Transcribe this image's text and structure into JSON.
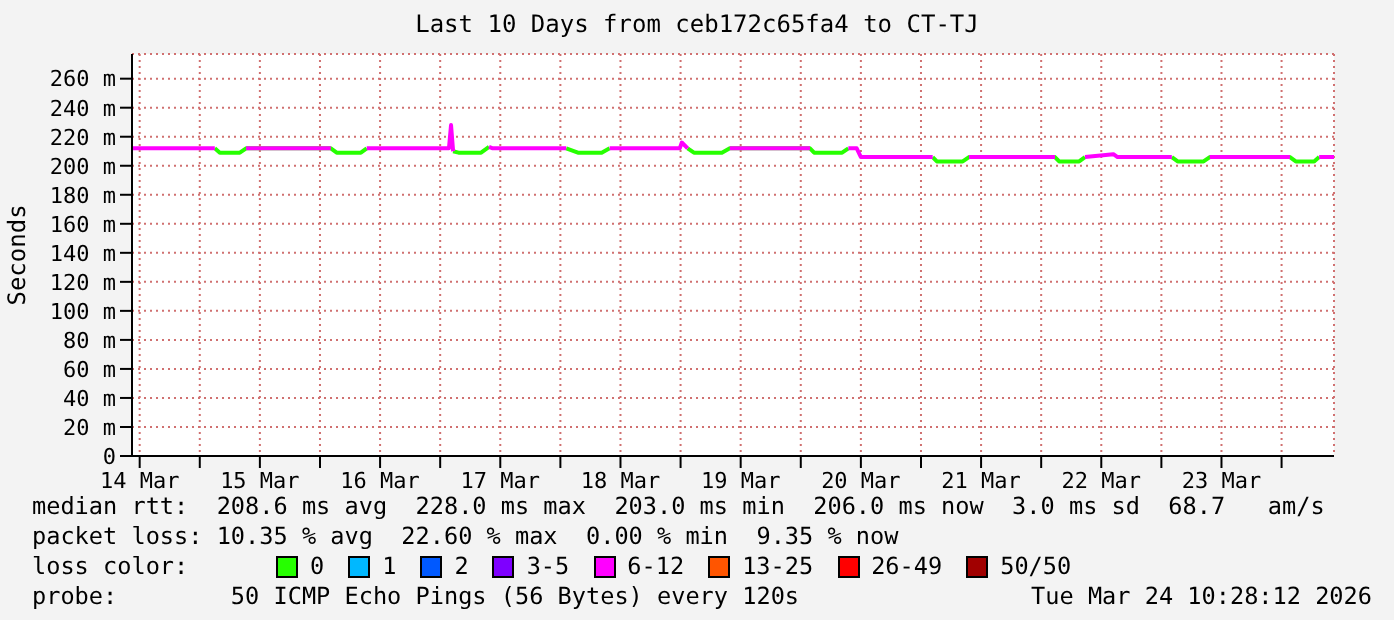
{
  "chart_data": {
    "type": "line",
    "title": "Last 10 Days from ceb172c65fa4 to CT-TJ",
    "ylabel": "Seconds",
    "legend_title": "loss color:",
    "legend": "bottom",
    "grid": true,
    "marker": "none",
    "line_style": "solid",
    "x": [
      "2026-03-14T10:28",
      "2026-03-15T03:00",
      "2026-03-15T04:00",
      "2026-03-15T08:00",
      "2026-03-15T09:15",
      "2026-03-16T02:10",
      "2026-03-16T03:20",
      "2026-03-16T08:10",
      "2026-03-16T09:20",
      "2026-03-17T01:45",
      "2026-03-17T02:10",
      "2026-03-17T02:35",
      "2026-03-17T03:40",
      "2026-03-17T08:10",
      "2026-03-17T09:45",
      "2026-03-17T10:30",
      "2026-03-18T01:10",
      "2026-03-18T03:30",
      "2026-03-18T08:15",
      "2026-03-18T09:50",
      "2026-03-18T23:50",
      "2026-03-19T00:15",
      "2026-03-19T01:25",
      "2026-03-19T02:40",
      "2026-03-19T08:15",
      "2026-03-19T09:50",
      "2026-03-20T01:50",
      "2026-03-20T02:40",
      "2026-03-20T08:15",
      "2026-03-20T09:30",
      "2026-03-20T11:10",
      "2026-03-20T12:00",
      "2026-03-21T02:20",
      "2026-03-21T03:10",
      "2026-03-21T08:20",
      "2026-03-21T09:35",
      "2026-03-22T02:45",
      "2026-03-22T03:35",
      "2026-03-22T07:35",
      "2026-03-22T08:45",
      "2026-03-22T14:25",
      "2026-03-22T15:15",
      "2026-03-23T02:05",
      "2026-03-23T03:15",
      "2026-03-23T08:25",
      "2026-03-23T09:40",
      "2026-03-24T01:40",
      "2026-03-24T02:50",
      "2026-03-24T06:30",
      "2026-03-24T07:30",
      "2026-03-24T10:28"
    ],
    "series": [
      {
        "name": "0",
        "color": "#26ff00",
        "values": [
          null,
          212,
          209,
          209,
          212,
          212,
          209,
          209,
          212,
          null,
          null,
          210,
          209,
          209,
          213,
          null,
          212,
          209,
          209,
          212,
          null,
          null,
          212,
          209,
          209,
          212,
          212,
          209,
          209,
          212,
          null,
          null,
          206,
          203,
          203,
          206,
          206,
          203,
          203,
          206,
          null,
          null,
          206,
          203,
          203,
          206,
          206,
          203,
          203,
          206,
          null
        ]
      },
      {
        "name": "1",
        "color": "#00b8ff",
        "values": [
          null,
          null,
          null,
          null,
          null,
          null,
          null,
          null,
          null,
          null,
          null,
          null,
          null,
          null,
          null,
          null,
          null,
          null,
          null,
          null,
          null,
          null,
          null,
          null,
          null,
          null,
          null,
          null,
          null,
          null,
          null,
          null,
          null,
          null,
          null,
          null,
          null,
          null,
          null,
          null,
          null,
          null,
          null,
          null,
          null,
          null,
          null,
          null,
          null,
          null,
          null
        ]
      },
      {
        "name": "2",
        "color": "#0059ff",
        "values": [
          null,
          null,
          null,
          null,
          null,
          null,
          null,
          null,
          null,
          null,
          null,
          null,
          null,
          null,
          null,
          null,
          null,
          null,
          null,
          null,
          null,
          null,
          null,
          null,
          null,
          null,
          null,
          null,
          null,
          null,
          null,
          null,
          null,
          null,
          null,
          null,
          null,
          null,
          null,
          null,
          null,
          null,
          null,
          null,
          null,
          null,
          null,
          null,
          null,
          null,
          null
        ]
      },
      {
        "name": "3-5",
        "color": "#7e00ff",
        "values": [
          null,
          null,
          null,
          null,
          null,
          null,
          null,
          null,
          null,
          null,
          null,
          null,
          null,
          null,
          null,
          null,
          null,
          null,
          null,
          null,
          null,
          null,
          null,
          null,
          null,
          null,
          null,
          null,
          null,
          null,
          null,
          null,
          null,
          null,
          null,
          null,
          null,
          null,
          null,
          null,
          null,
          null,
          null,
          null,
          null,
          null,
          null,
          null,
          null,
          null,
          null
        ]
      },
      {
        "name": "6-12",
        "color": "#ff00ff",
        "values": [
          212,
          212,
          null,
          null,
          212,
          212,
          null,
          null,
          212,
          212,
          228,
          210,
          null,
          null,
          213,
          212,
          212,
          null,
          null,
          212,
          212,
          216,
          212,
          null,
          null,
          212,
          212,
          null,
          null,
          212,
          212,
          206,
          206,
          null,
          null,
          206,
          206,
          null,
          null,
          206,
          208,
          206,
          206,
          null,
          null,
          206,
          206,
          null,
          null,
          206,
          206
        ]
      },
      {
        "name": "13-25",
        "color": "#ff5500",
        "values": [
          null,
          null,
          null,
          null,
          null,
          null,
          null,
          null,
          null,
          null,
          null,
          null,
          null,
          null,
          null,
          null,
          null,
          null,
          null,
          null,
          null,
          null,
          null,
          null,
          null,
          null,
          null,
          null,
          null,
          null,
          null,
          null,
          null,
          null,
          null,
          null,
          null,
          null,
          null,
          null,
          null,
          null,
          null,
          null,
          null,
          null,
          null,
          null,
          null,
          null,
          null
        ]
      },
      {
        "name": "26-49",
        "color": "#ff0000",
        "values": [
          null,
          null,
          null,
          null,
          null,
          null,
          null,
          null,
          null,
          null,
          null,
          null,
          null,
          null,
          null,
          null,
          null,
          null,
          null,
          null,
          null,
          null,
          null,
          null,
          null,
          null,
          null,
          null,
          null,
          null,
          null,
          null,
          null,
          null,
          null,
          null,
          null,
          null,
          null,
          null,
          null,
          null,
          null,
          null,
          null,
          null,
          null,
          null,
          null,
          null,
          null
        ]
      },
      {
        "name": "50/50",
        "color": "#a10000",
        "values": [
          null,
          null,
          null,
          null,
          null,
          null,
          null,
          null,
          null,
          null,
          null,
          null,
          null,
          null,
          null,
          null,
          null,
          null,
          null,
          null,
          null,
          null,
          null,
          null,
          null,
          null,
          null,
          null,
          null,
          null,
          null,
          null,
          null,
          null,
          null,
          null,
          null,
          null,
          null,
          null,
          null,
          null,
          null,
          null,
          null,
          null,
          null,
          null,
          null,
          null,
          null
        ]
      }
    ],
    "xlim": [
      "2026-03-14T10:28",
      "2026-03-24T10:28"
    ],
    "xticks": [
      {
        "value": "2026-03-14T12:00",
        "label": "14 Mar"
      },
      {
        "value": "2026-03-15T00:00",
        "label": null
      },
      {
        "value": "2026-03-15T12:00",
        "label": "15 Mar"
      },
      {
        "value": "2026-03-16T00:00",
        "label": null
      },
      {
        "value": "2026-03-16T12:00",
        "label": "16 Mar"
      },
      {
        "value": "2026-03-17T00:00",
        "label": null
      },
      {
        "value": "2026-03-17T12:00",
        "label": "17 Mar"
      },
      {
        "value": "2026-03-18T00:00",
        "label": null
      },
      {
        "value": "2026-03-18T12:00",
        "label": "18 Mar"
      },
      {
        "value": "2026-03-19T00:00",
        "label": null
      },
      {
        "value": "2026-03-19T12:00",
        "label": "19 Mar"
      },
      {
        "value": "2026-03-20T00:00",
        "label": null
      },
      {
        "value": "2026-03-20T12:00",
        "label": "20 Mar"
      },
      {
        "value": "2026-03-21T00:00",
        "label": null
      },
      {
        "value": "2026-03-21T12:00",
        "label": "21 Mar"
      },
      {
        "value": "2026-03-22T00:00",
        "label": null
      },
      {
        "value": "2026-03-22T12:00",
        "label": "22 Mar"
      },
      {
        "value": "2026-03-23T00:00",
        "label": null
      },
      {
        "value": "2026-03-23T12:00",
        "label": "23 Mar"
      },
      {
        "value": "2026-03-24T00:00",
        "label": null
      }
    ],
    "ylim": [
      0,
      277
    ],
    "yticks": [
      {
        "value": 0,
        "label": "0"
      },
      {
        "value": 20,
        "label": "20 m"
      },
      {
        "value": 40,
        "label": "40 m"
      },
      {
        "value": 60,
        "label": "60 m"
      },
      {
        "value": 80,
        "label": "80 m"
      },
      {
        "value": 100,
        "label": "100 m"
      },
      {
        "value": 120,
        "label": "120 m"
      },
      {
        "value": 140,
        "label": "140 m"
      },
      {
        "value": 160,
        "label": "160 m"
      },
      {
        "value": 180,
        "label": "180 m"
      },
      {
        "value": 200,
        "label": "200 m"
      },
      {
        "value": 220,
        "label": "220 m"
      },
      {
        "value": 240,
        "label": "240 m"
      },
      {
        "value": 260,
        "label": "260 m"
      }
    ],
    "annotations": [
      "median rtt:  208.6 ms avg  228.0 ms max  203.0 ms min  206.0 ms now  3.0 ms sd  68.7   am/s",
      "packet loss: 10.35 % avg  22.60 % max  0.00 % min  9.35 % now",
      "probe:        50 ICMP Echo Pings (56 Bytes) every 120s",
      "Tue Mar 24 10:28:12 2026"
    ]
  }
}
